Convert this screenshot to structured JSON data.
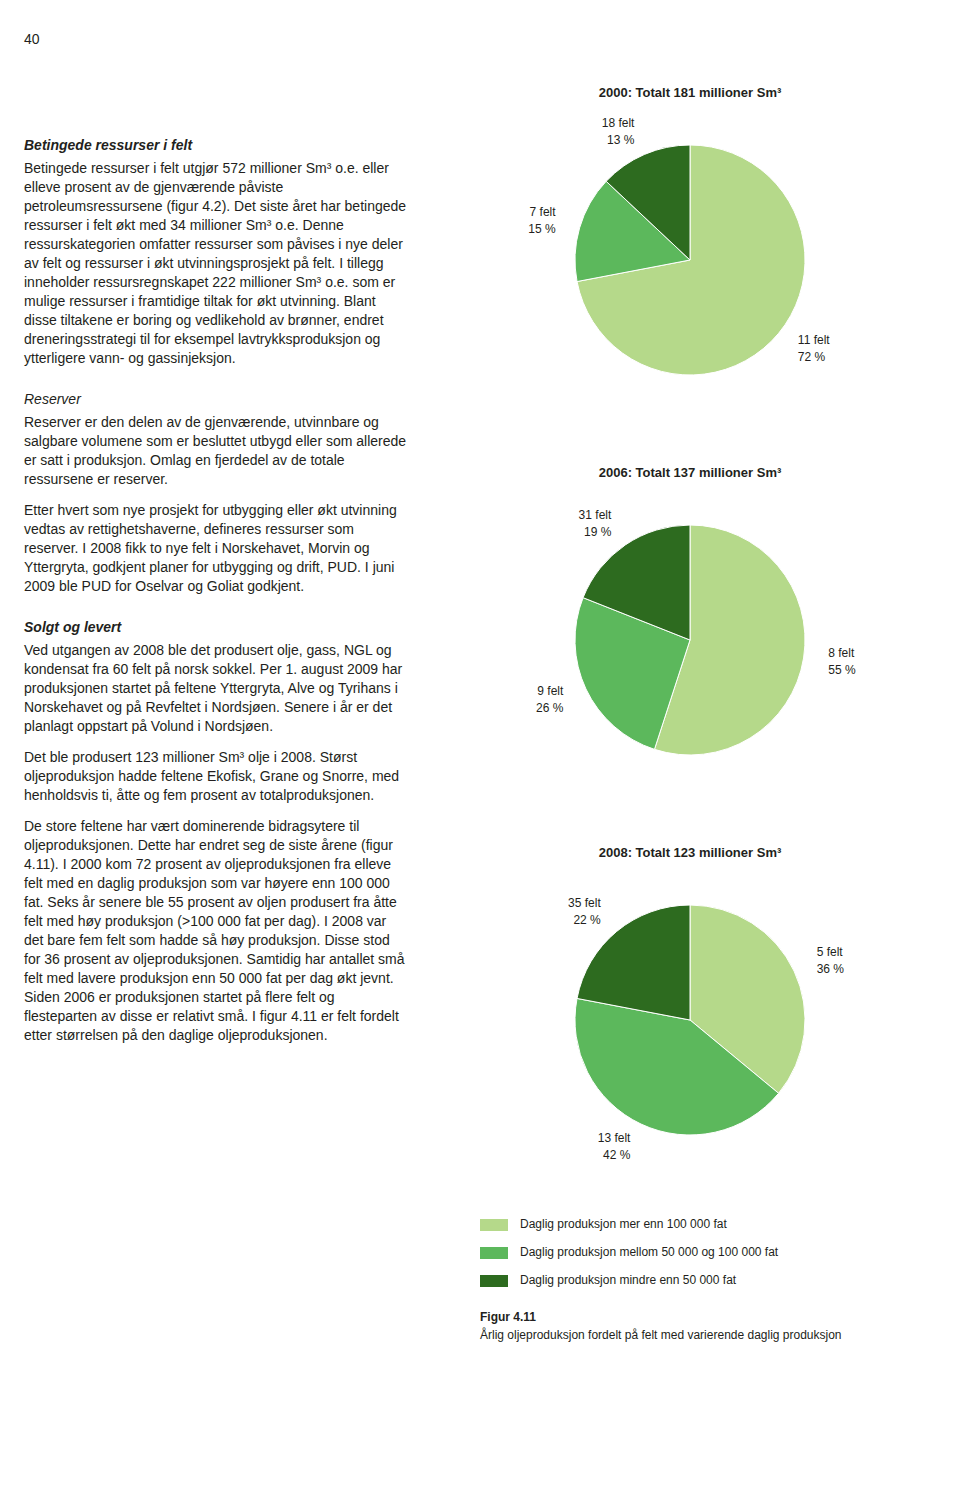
{
  "chart_data": [
    {
      "type": "pie",
      "title": "2000: Totalt 181 millioner Sm³",
      "categories": [
        "11 felt",
        "7 felt",
        "18 felt"
      ],
      "values": [
        72,
        15,
        13
      ],
      "value_labels": [
        "72 %",
        "15 %",
        "13 %"
      ],
      "colors": [
        "#b5d98a",
        "#5cb85c",
        "#2d6b1f"
      ],
      "data_labels": true
    },
    {
      "type": "pie",
      "title": "2006: Totalt 137 millioner Sm³",
      "categories": [
        "8 felt",
        "9 felt",
        "31 felt"
      ],
      "values": [
        55,
        26,
        19
      ],
      "value_labels": [
        "55 %",
        "26 %",
        "19 %"
      ],
      "colors": [
        "#b5d98a",
        "#5cb85c",
        "#2d6b1f"
      ],
      "data_labels": true
    },
    {
      "type": "pie",
      "title": "2008: Totalt 123 millioner Sm³",
      "categories": [
        "5 felt",
        "13 felt",
        "35 felt"
      ],
      "values": [
        36,
        42,
        22
      ],
      "value_labels": [
        "36 %",
        "42 %",
        "22 %"
      ],
      "colors": [
        "#b5d98a",
        "#5cb85c",
        "#2d6b1f"
      ],
      "data_labels": true
    }
  ],
  "page_number": "40",
  "texts": [
    {
      "text": "Betingede ressurser i felt",
      "style": "bold_italic"
    },
    {
      "text": "Betingede ressurser i felt utgjør 572 millioner Sm³ o.e. eller elleve prosent av de gjenværende påviste petroleumsressursene (figur 4.2). Det siste året har betingede ressurser i felt økt med 34 millioner Sm³ o.e. Denne ressurskategorien omfatter ressurser som påvises i nye deler av felt og ressurser i økt utvinningsprosjekt på felt. I tillegg inneholder ressursregnskapet 222 millioner Sm³ o.e. som er mulige ressurser i framtidige tiltak for økt utvinning. Blant disse tiltakene er boring og vedlikehold av brønner, endret dreneringsstrategi til for eksempel lavtrykksproduksjon og ytterligere vann- og gassinjeksjon.",
      "style": "normal"
    },
    {
      "text": "Reserver",
      "style": "italic"
    },
    {
      "text": "Reserver er den delen av de gjenværende, utvinnbare og salgbare volumene som er besluttet utbygd eller som allerede er satt i produksjon. Omlag en fjerdedel av de totale ressursene er reserver.",
      "style": "normal"
    },
    {
      "text": "Etter hvert som nye prosjekt for utbygging eller økt utvinning vedtas av rettighetshaverne, defineres ressurser som reserver. I 2008 fikk to nye felt i Norskehavet, Morvin og Yttergryta, godkjent planer for utbygging og drift, PUD. I juni 2009 ble PUD for Oselvar og Goliat godkjent.",
      "style": "normal"
    },
    {
      "text": "Solgt og levert",
      "style": "bold_italic"
    },
    {
      "text": "Ved utgangen av 2008 ble det produsert olje, gass, NGL og kondensat fra 60 felt på norsk sokkel. Per 1. august 2009 har produksjonen startet på feltene Yttergryta, Alve og Tyrihans i Norskehavet og på Revfeltet i Nordsjøen. Senere i år er det planlagt oppstart på Volund i Nordsjøen.",
      "style": "normal"
    },
    {
      "text": "Det ble produsert 123 millioner Sm³ olje i 2008. Størst oljeproduksjon hadde feltene Ekofisk, Grane og Snorre, med henholdsvis ti, åtte og fem prosent av totalproduksjonen.",
      "style": "normal"
    },
    {
      "text": "De store feltene har vært dominerende bidragsytere til oljeproduksjonen. Dette har endret seg de siste årene (figur 4.11). I 2000 kom 72 prosent av oljeproduksjonen fra elleve felt med en daglig produksjon som var høyere enn 100 000 fat. Seks år senere ble 55 prosent av oljen produsert fra åtte felt med høy produksjon (>100 000 fat per dag). I 2008 var det bare fem felt som hadde så høy produksjon. Disse stod for 36 prosent av oljeproduksjonen. Samtidig har antallet små felt med lavere produksjon enn 50 000 fat per dag økt jevnt. Siden 2006 er produksjonen startet på flere felt og flesteparten av disse er relativt små. I figur 4.11 er felt fordelt etter størrelsen på den daglige oljeproduksjonen.",
      "style": "normal"
    }
  ],
  "legend_entries": [
    {
      "name": "Daglig produksjon mer enn 100 000 fat",
      "color": "#b5d98a"
    },
    {
      "name": "Daglig produksjon mellom 50 000 og 100 000 fat",
      "color": "#5cb85c"
    },
    {
      "name": "Daglig produksjon mindre enn 50 000 fat",
      "color": "#2d6b1f"
    }
  ],
  "caption": {
    "label": "Figur 4.11",
    "text": "Årlig oljeproduksjon fordelt på felt med varierende daglig produksjon"
  }
}
